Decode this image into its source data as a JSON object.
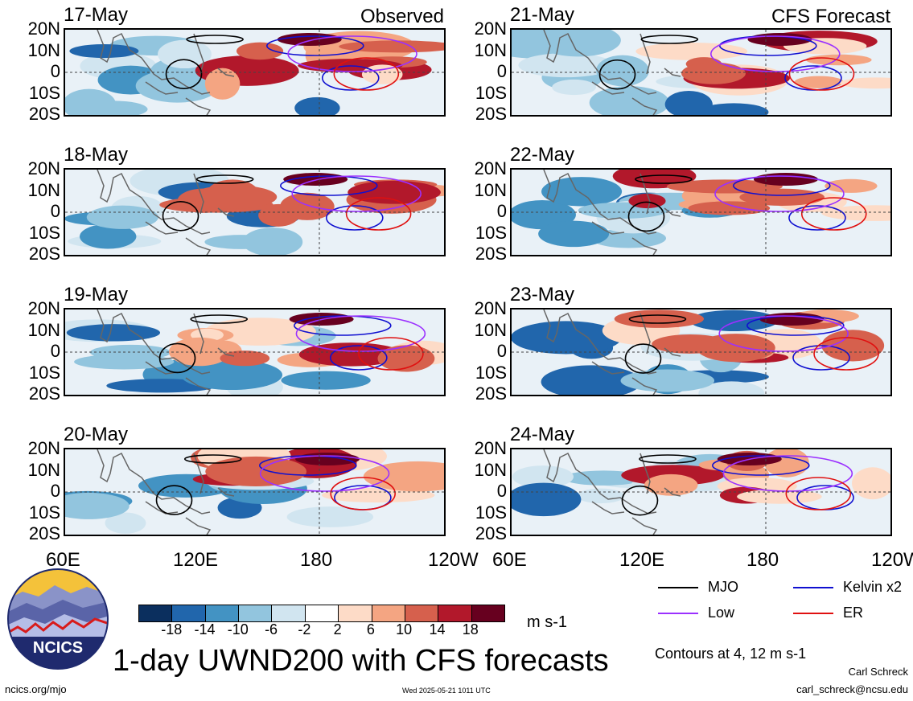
{
  "panels": [
    {
      "date": "17-May",
      "title": "Observed",
      "col": 0,
      "row": 0
    },
    {
      "date": "18-May",
      "title": "",
      "col": 0,
      "row": 1
    },
    {
      "date": "19-May",
      "title": "",
      "col": 0,
      "row": 2
    },
    {
      "date": "20-May",
      "title": "",
      "col": 0,
      "row": 3
    },
    {
      "date": "21-May",
      "title": "CFS Forecast",
      "col": 1,
      "row": 0
    },
    {
      "date": "22-May",
      "title": "",
      "col": 1,
      "row": 1
    },
    {
      "date": "23-May",
      "title": "",
      "col": 1,
      "row": 2
    },
    {
      "date": "24-May",
      "title": "",
      "col": 1,
      "row": 3
    }
  ],
  "lat_labels": [
    "20N",
    "10N",
    "0",
    "10S",
    "20S"
  ],
  "lon_labels": [
    "60E",
    "120E",
    "180",
    "120W"
  ],
  "colorbar": {
    "colors": [
      "#0b2f5e",
      "#2166ac",
      "#4393c3",
      "#92c5de",
      "#d1e5f0",
      "#ffffff",
      "#fddbc7",
      "#f4a582",
      "#d6604d",
      "#b2182b",
      "#67001f"
    ],
    "ticks": [
      "-18",
      "-14",
      "-10",
      "-6",
      "-2",
      "2",
      "6",
      "10",
      "14",
      "18"
    ],
    "units": "m s-1"
  },
  "legend": [
    {
      "label": "MJO",
      "color": "#000000"
    },
    {
      "label": "Kelvin x2",
      "color": "#1010d0"
    },
    {
      "label": "Low",
      "color": "#9b30ff"
    },
    {
      "label": "ER",
      "color": "#e01010"
    }
  ],
  "contours_note": "Contours at 4, 12 m s-1",
  "main_title": "1-day UWND200 with CFS forecasts",
  "logo_text": "NCICS",
  "url": "ncics.org/mjo",
  "timestamp": "Wed 2025-05-21 1011 UTC",
  "author": "Carl Schreck",
  "email": "carl_schreck@ncsu.edu"
}
